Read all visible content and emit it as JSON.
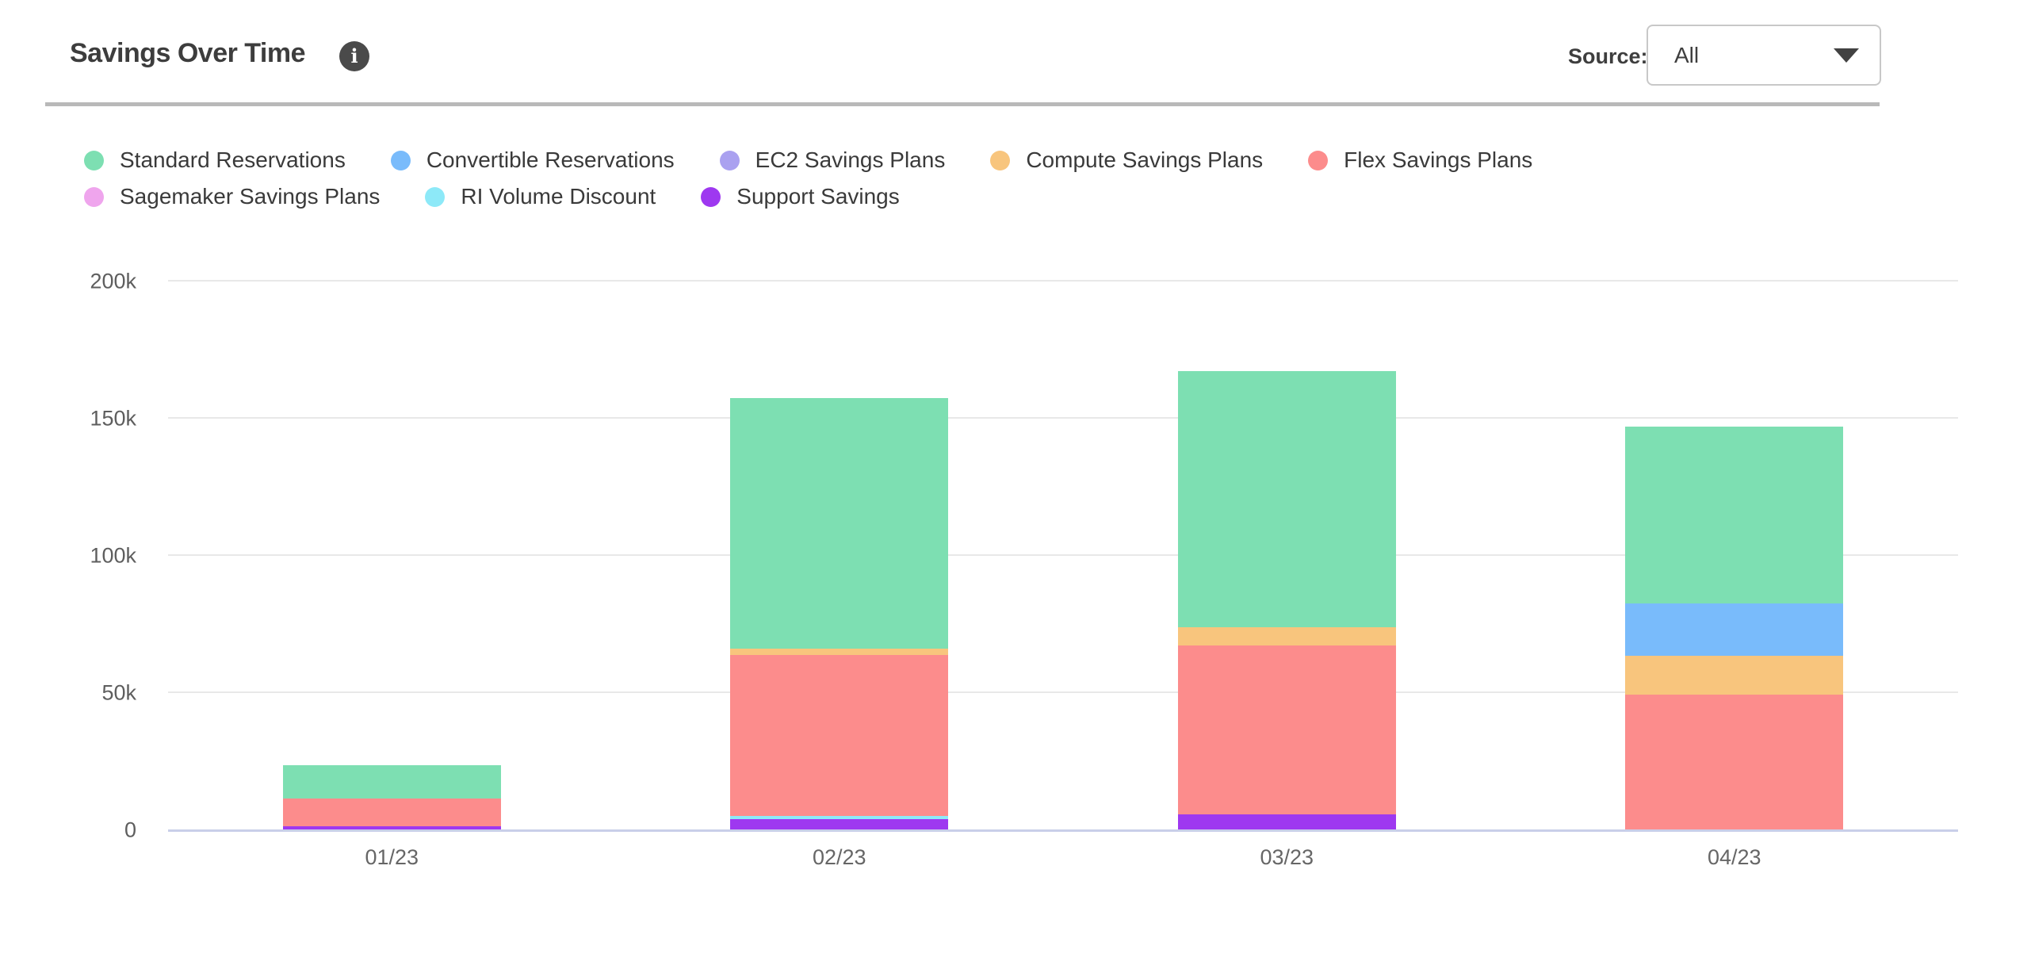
{
  "header": {
    "title": "Savings Over Time",
    "info_icon_glyph": "i",
    "source_label": "Source:",
    "source_value": "All"
  },
  "chart_data": {
    "type": "bar",
    "stacked": true,
    "title": "Savings Over Time",
    "xlabel": "",
    "ylabel": "",
    "grid": true,
    "legend_position": "top",
    "categories": [
      "01/23",
      "02/23",
      "03/23",
      "04/23"
    ],
    "series": [
      {
        "name": "Standard Reservations",
        "color": "#7DDFB2",
        "values": [
          12300,
          91300,
          93300,
          64200
        ]
      },
      {
        "name": "Convertible Reservations",
        "color": "#79BBFB",
        "values": [
          0,
          0,
          0,
          19200
        ]
      },
      {
        "name": "EC2 Savings Plans",
        "color": "#AAA1F0",
        "values": [
          0,
          0,
          0,
          0
        ]
      },
      {
        "name": "Compute Savings Plans",
        "color": "#F8C57D",
        "values": [
          0,
          2300,
          6500,
          14200
        ]
      },
      {
        "name": "Flex Savings Plans",
        "color": "#FC8C8C",
        "values": [
          10100,
          58800,
          61700,
          49100
        ]
      },
      {
        "name": "Sagemaker Savings Plans",
        "color": "#EFA5ED",
        "values": [
          0,
          0,
          0,
          0
        ]
      },
      {
        "name": "RI Volume Discount",
        "color": "#8DE9F8",
        "values": [
          0,
          1000,
          0,
          0
        ]
      },
      {
        "name": "Support Savings",
        "color": "#9E38F0",
        "values": [
          1100,
          3900,
          5500,
          0
        ]
      }
    ],
    "totals": [
      23500,
      157300,
      167000,
      146700
    ],
    "yticks": [
      {
        "value": 0,
        "label": "0"
      },
      {
        "value": 50000,
        "label": "50k"
      },
      {
        "value": 100000,
        "label": "100k"
      },
      {
        "value": 150000,
        "label": "150k"
      },
      {
        "value": 200000,
        "label": "200k"
      }
    ],
    "ylim": [
      0,
      200000
    ],
    "colors": {
      "gridline": "#e8e8e8",
      "x_axis_line": "#c9cfe9",
      "y_label": "#5e5e5e",
      "x_label": "#666666"
    }
  }
}
